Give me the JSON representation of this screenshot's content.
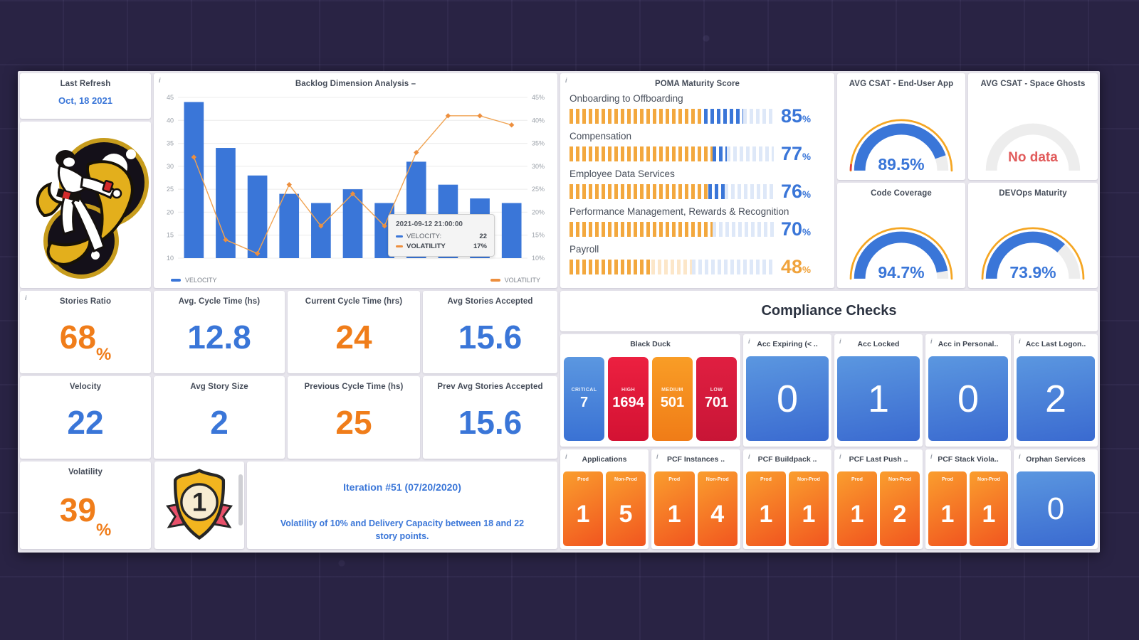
{
  "icons": {
    "info": "i"
  },
  "last_refresh": {
    "title": "Last Refresh",
    "date": "Oct, 18 2021"
  },
  "chart_panel": {
    "title": "Backlog Dimension Analysis –"
  },
  "chart_data": {
    "type": "bar+line",
    "title": "Backlog Dimension Analysis",
    "series": [
      {
        "name": "VELOCITY",
        "type": "bar",
        "axis": "left",
        "values": [
          44,
          34,
          28,
          24,
          22,
          25,
          22,
          31,
          26,
          23,
          22
        ]
      },
      {
        "name": "VOLATILITY",
        "type": "line",
        "axis": "right",
        "unit": "%",
        "values": [
          32,
          14,
          11,
          26,
          17,
          24,
          17,
          33,
          41,
          41,
          39
        ]
      }
    ],
    "left_axis": {
      "min": 10,
      "max": 45,
      "step": 5
    },
    "right_axis": {
      "min": 10,
      "max": 45,
      "step": 5,
      "unit": "%"
    },
    "grid": true,
    "legend_position": "bottom",
    "legend": [
      {
        "label": "VELOCITY",
        "color": "#3a76d8"
      },
      {
        "label": "VOLATILITY",
        "color": "#ed8f3e"
      }
    ],
    "tooltip": {
      "date": "2021-09-12 21:00:00",
      "rows": [
        {
          "label": "VELOCITY:",
          "value": "22",
          "color": "#3a76d8"
        },
        {
          "label": "VOLATILITY",
          "value": "17%",
          "color": "#ed8f3e"
        }
      ]
    }
  },
  "poma": {
    "title": "POMA Maturity Score",
    "rows": [
      {
        "label": "Onboarding to Offboarding",
        "value": "85",
        "unit": "%",
        "value_color": "#3a76d8",
        "zones": [
          {
            "color": "orange",
            "from": 0,
            "to": 66
          },
          {
            "color": "blue",
            "from": 66,
            "to": 85
          },
          {
            "color": "fadedBlue",
            "from": 85,
            "to": 100
          }
        ]
      },
      {
        "label": "Compensation",
        "value": "77",
        "unit": "%",
        "value_color": "#3a76d8",
        "zones": [
          {
            "color": "orange",
            "from": 0,
            "to": 70
          },
          {
            "color": "blue",
            "from": 70,
            "to": 77
          },
          {
            "color": "fadedBlue",
            "from": 77,
            "to": 100
          }
        ]
      },
      {
        "label": "Employee Data Services",
        "value": "76",
        "unit": "%",
        "value_color": "#3a76d8",
        "zones": [
          {
            "color": "orange",
            "from": 0,
            "to": 68
          },
          {
            "color": "blue",
            "from": 68,
            "to": 76
          },
          {
            "color": "fadedBlue",
            "from": 76,
            "to": 100
          }
        ]
      },
      {
        "label": "Performance Management, Rewards & Recognition",
        "value": "70",
        "unit": "%",
        "value_color": "#3a76d8",
        "zones": [
          {
            "color": "orange",
            "from": 0,
            "to": 70
          },
          {
            "color": "fadedBlue",
            "from": 70,
            "to": 100
          }
        ]
      },
      {
        "label": "Payroll",
        "value": "48",
        "unit": "%",
        "value_color": "#f0a33c",
        "zones": [
          {
            "color": "orange",
            "from": 0,
            "to": 40
          },
          {
            "color": "fadedOrange",
            "from": 40,
            "to": 60
          },
          {
            "color": "fadedBlue",
            "from": 60,
            "to": 100
          }
        ]
      }
    ]
  },
  "gauges": [
    {
      "title": "AVG CSAT - End-User App",
      "value": "89.5%",
      "percent": 89.5,
      "no_data": false
    },
    {
      "title": "AVG CSAT - Space Ghosts",
      "value": "No data",
      "no_data": true
    },
    {
      "title": "Code Coverage",
      "value": "94.7%",
      "percent": 94.7,
      "no_data": false
    },
    {
      "title": "DEVOps Maturity",
      "value": "73.9%",
      "percent": 73.9,
      "no_data": false
    }
  ],
  "kpis": {
    "row1": [
      {
        "label": "Stories Ratio",
        "value": "68",
        "suffix": "%",
        "color": "#f07d1a"
      },
      {
        "label": "Avg. Cycle Time (hs)",
        "value": "12.8",
        "suffix": "",
        "color": "#3a76d8"
      },
      {
        "label": "Current Cycle Time (hrs)",
        "value": "24",
        "suffix": "",
        "color": "#f07d1a"
      },
      {
        "label": "Avg Stories Accepted",
        "value": "15.6",
        "suffix": "",
        "color": "#3a76d8"
      }
    ],
    "row2": [
      {
        "label": "Velocity",
        "value": "22",
        "suffix": "",
        "color": "#3a76d8"
      },
      {
        "label": "Avg Story Size",
        "value": "2",
        "suffix": "",
        "color": "#3a76d8"
      },
      {
        "label": "Previous Cycle Time (hs)",
        "value": "25",
        "suffix": "",
        "color": "#f07d1a"
      },
      {
        "label": "Prev Avg Stories Accepted",
        "value": "15.6",
        "suffix": "",
        "color": "#3a76d8"
      }
    ],
    "volatility": {
      "label": "Volatility",
      "value": "39",
      "suffix": "%",
      "color": "#f07d1a"
    }
  },
  "badge": {
    "rank": "1"
  },
  "iteration_note": {
    "title": "Iteration #51 (07/20/2020)",
    "body": "Volatility of 10% and Delivery Capacity between 18 and 22 story points."
  },
  "compliance": {
    "title": "Compliance Checks",
    "black_duck": {
      "title": "Black Duck",
      "tiles": [
        {
          "label": "CRITICAL",
          "value": "7"
        },
        {
          "label": "HIGH",
          "value": "1694"
        },
        {
          "label": "MEDIUM",
          "value": "501"
        },
        {
          "label": "LOW",
          "value": "701"
        }
      ]
    },
    "account_tiles": [
      {
        "title": "Acc Expiring (< ..",
        "value": "0"
      },
      {
        "title": "Acc Locked",
        "value": "1"
      },
      {
        "title": "Acc in Personal..",
        "value": "0"
      },
      {
        "title": "Acc Last Logon..",
        "value": "2"
      }
    ],
    "env_tile_labels": {
      "prod": "Prod",
      "nonprod": "Non-Prod"
    },
    "env_groups": [
      {
        "title": "Applications",
        "prod": "1",
        "nonprod": "5"
      },
      {
        "title": "PCF Instances ..",
        "prod": "1",
        "nonprod": "4"
      },
      {
        "title": "PCF Buildpack ..",
        "prod": "1",
        "nonprod": "1"
      },
      {
        "title": "PCF Last Push ..",
        "prod": "1",
        "nonprod": "2"
      },
      {
        "title": "PCF Stack Viola..",
        "prod": "1",
        "nonprod": "1"
      }
    ],
    "orphan": {
      "title": "Orphan Services",
      "value": "0"
    }
  }
}
